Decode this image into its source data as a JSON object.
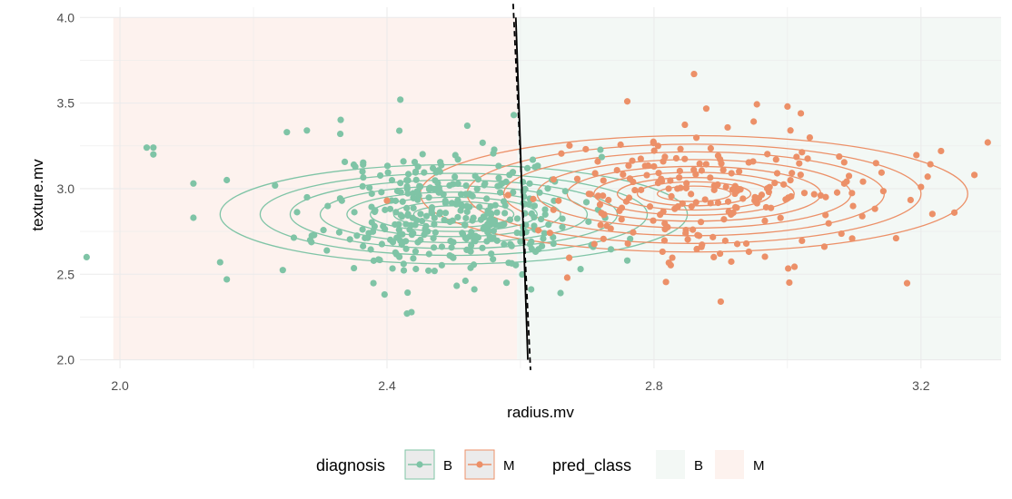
{
  "chart_data": {
    "type": "scatter",
    "title": "",
    "xlabel": "radius.mv",
    "ylabel": "texture.mv",
    "xlim": [
      1.94,
      3.32
    ],
    "ylim": [
      1.95,
      4.06
    ],
    "x_ticks": [
      2.0,
      2.4,
      2.8,
      3.2
    ],
    "x_tick_labels": [
      "2.0",
      "2.4",
      "2.8",
      "3.2"
    ],
    "y_ticks": [
      2.0,
      2.5,
      3.0,
      3.5,
      4.0
    ],
    "y_tick_labels": [
      "2.0",
      "2.5",
      "3.0",
      "3.5",
      "4.0"
    ],
    "grid": true,
    "colors": {
      "B": "#7fc4a6",
      "M": "#ec9068",
      "region_B": "#f3f8f5",
      "region_M": "#fdf2ee",
      "grid": "#ebebeb",
      "boundary": "#000000"
    },
    "regions": [
      {
        "class": "M",
        "x_range": [
          1.99,
          2.595
        ],
        "y_range": [
          2.0,
          4.0
        ]
      },
      {
        "class": "B",
        "x_range": [
          2.595,
          3.32
        ],
        "y_range": [
          2.0,
          4.0
        ]
      }
    ],
    "decision_boundaries": [
      {
        "style": "solid",
        "points": [
          [
            2.593,
            4.0
          ],
          [
            2.611,
            2.0
          ]
        ]
      },
      {
        "style": "dashed",
        "points": [
          [
            2.589,
            4.08
          ],
          [
            2.615,
            1.94
          ]
        ]
      }
    ],
    "contours": [
      {
        "class": "B",
        "center": [
          2.5,
          2.85
        ],
        "radii_x": [
          0.06,
          0.09,
          0.125,
          0.16,
          0.2,
          0.245,
          0.29,
          0.35
        ],
        "radii_y": [
          0.05,
          0.075,
          0.1,
          0.13,
          0.165,
          0.2,
          0.24,
          0.29
        ]
      },
      {
        "class": "M",
        "center": [
          2.86,
          2.97
        ],
        "radii_x": [
          0.055,
          0.085,
          0.115,
          0.15,
          0.19,
          0.235,
          0.285,
          0.34,
          0.41
        ],
        "radii_y": [
          0.045,
          0.07,
          0.095,
          0.125,
          0.16,
          0.2,
          0.245,
          0.29,
          0.34
        ]
      }
    ],
    "series": [
      {
        "name": "B",
        "center": [
          2.5,
          2.85
        ],
        "sd": [
          0.095,
          0.19
        ],
        "n": 357,
        "seed": 11,
        "extra_points": [
          [
            1.95,
            2.6
          ],
          [
            2.04,
            3.24
          ],
          [
            2.05,
            3.24
          ],
          [
            2.05,
            3.2
          ],
          [
            2.11,
            3.03
          ],
          [
            2.11,
            2.83
          ],
          [
            2.15,
            2.57
          ],
          [
            2.16,
            3.05
          ],
          [
            2.16,
            2.47
          ],
          [
            2.43,
            2.27
          ],
          [
            2.42,
            3.52
          ],
          [
            2.76,
            2.58
          ],
          [
            2.66,
            2.39
          ],
          [
            2.69,
            2.53
          ],
          [
            2.59,
            3.43
          ],
          [
            2.25,
            3.33
          ],
          [
            2.28,
            3.34
          ],
          [
            2.33,
            3.32
          ]
        ]
      },
      {
        "name": "M",
        "center": [
          2.86,
          2.97
        ],
        "sd": [
          0.135,
          0.2
        ],
        "n": 212,
        "seed": 29,
        "extra_points": [
          [
            2.86,
            3.67
          ],
          [
            2.9,
            2.34
          ],
          [
            3.25,
            2.86
          ],
          [
            3.3,
            3.27
          ],
          [
            3.28,
            3.08
          ],
          [
            3.21,
            3.07
          ],
          [
            3.23,
            3.22
          ],
          [
            3.2,
            3.01
          ],
          [
            2.76,
            3.51
          ],
          [
            2.8,
            3.13
          ],
          [
            2.4,
            2.93
          ],
          [
            2.67,
            2.48
          ],
          [
            3.0,
            3.48
          ],
          [
            3.02,
            3.44
          ]
        ]
      }
    ],
    "legend": {
      "placement": "bottom",
      "diagnosis_title": "diagnosis",
      "diagnosis_labels": [
        "B",
        "M"
      ],
      "pred_title": "pred_class",
      "pred_labels": [
        "B",
        "M"
      ]
    }
  }
}
